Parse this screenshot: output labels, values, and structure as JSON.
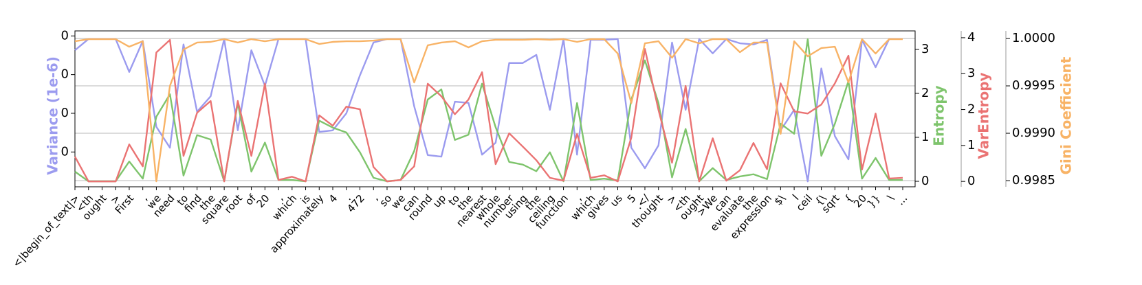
{
  "chart_data": {
    "type": "line",
    "categories": [
      "<|begin_of_text|>",
      "<th",
      "ought",
      ">",
      "First",
      ",",
      "we",
      "need",
      "to",
      "find",
      "the",
      "square",
      "root",
      "of",
      "20",
      ",",
      "which",
      "is",
      "approximately",
      "4",
      ".",
      "472",
      ",",
      "so",
      "we",
      "can",
      "round",
      "up",
      "to",
      "the",
      "nearest",
      "whole",
      "number",
      "using",
      "the",
      "ceiling",
      "function",
      ",",
      "which",
      "gives",
      "us",
      "5",
      ".</",
      "thought",
      ">",
      "<th",
      "ought",
      ">We",
      "can",
      "evaluate",
      "the",
      "expression",
      "$\\",
      "l",
      "ceil",
      "{\\",
      "sqrt",
      "{",
      "20",
      "}}",
      "\\",
      "..."
    ],
    "series": [
      {
        "name": "Variance (1e-6)",
        "color": "#9b9bef",
        "axis": "y",
        "values": [
          3.63,
          3.92,
          3.92,
          3.92,
          3.07,
          3.87,
          1.65,
          1.11,
          3.78,
          2.04,
          2.44,
          3.92,
          1.56,
          3.63,
          2.71,
          3.92,
          3.92,
          3.92,
          1.52,
          1.56,
          2.0,
          2.98,
          3.83,
          3.92,
          3.92,
          2.18,
          0.92,
          0.88,
          2.3,
          2.27,
          0.93,
          1.24,
          3.3,
          3.3,
          3.51,
          2.09,
          3.92,
          0.93,
          3.9,
          3.9,
          3.92,
          1.11,
          0.58,
          1.17,
          3.83,
          2.09,
          3.92,
          3.55,
          3.92,
          3.81,
          3.78,
          3.9,
          1.56,
          2.09,
          0.24,
          3.16,
          1.41,
          0.81,
          3.9,
          3.19,
          3.92,
          3.92
        ]
      },
      {
        "name": "Entropy",
        "color": "#7ec46c",
        "axis": "y2",
        "values": [
          0.22,
          0,
          0,
          0,
          0.45,
          0.06,
          1.47,
          1.98,
          0.13,
          1.05,
          0.95,
          0,
          1.78,
          0.22,
          0.88,
          0.03,
          0.03,
          0,
          1.38,
          1.22,
          1.11,
          0.66,
          0.08,
          0,
          0.03,
          0.69,
          1.86,
          2.09,
          0.94,
          1.06,
          2.22,
          1.23,
          0.44,
          0.38,
          0.23,
          0.66,
          0,
          1.78,
          0.03,
          0.06,
          0.02,
          1.86,
          2.75,
          1.78,
          0.09,
          1.19,
          0,
          0.3,
          0.03,
          0.11,
          0.16,
          0.05,
          1.31,
          1.08,
          3.23,
          0.58,
          1.31,
          2.28,
          0.06,
          0.53,
          0.03,
          0.03
        ]
      },
      {
        "name": "VarEntropy",
        "color": "#ea7373",
        "axis": "y3",
        "values": [
          0.69,
          0,
          0,
          0,
          1.03,
          0.42,
          3.59,
          3.94,
          0.71,
          1.91,
          2.24,
          0,
          2.24,
          0.71,
          2.72,
          0.04,
          0.13,
          0,
          1.84,
          1.55,
          2.08,
          2.01,
          0.4,
          0,
          0.04,
          0.42,
          2.72,
          2.37,
          1.87,
          2.28,
          3.04,
          0.48,
          1.34,
          0.97,
          0.59,
          0.1,
          0.02,
          1.32,
          0.1,
          0.17,
          0,
          1.22,
          3.69,
          1.99,
          0.52,
          2.66,
          0,
          1.2,
          0.02,
          0.31,
          1.07,
          0.34,
          2.73,
          1.95,
          1.89,
          2.14,
          2.73,
          3.5,
          0.33,
          1.89,
          0.08,
          0.1
        ]
      },
      {
        "name": "Gini Coefficient",
        "color": "#f8b366",
        "axis": "y4",
        "values": [
          0.999971,
          0.999993,
          0.999993,
          0.999993,
          0.999913,
          0.999971,
          0.998493,
          0.9995,
          0.999884,
          0.999957,
          0.999964,
          0.999993,
          0.999957,
          0.999993,
          0.999971,
          0.999993,
          0.999993,
          0.999993,
          0.999942,
          0.999964,
          0.999971,
          0.999971,
          0.999978,
          0.999993,
          0.999993,
          0.999536,
          0.999928,
          0.999957,
          0.999971,
          0.999906,
          0.999971,
          0.999986,
          0.999986,
          0.999986,
          0.999993,
          0.999986,
          0.999993,
          0.999964,
          0.999993,
          0.999993,
          0.999841,
          0.999319,
          0.999949,
          0.999971,
          0.999797,
          0.999993,
          0.999949,
          0.999993,
          0.999993,
          0.999855,
          0.999957,
          0.999957,
          0.998993,
          0.999971,
          0.999812,
          0.999899,
          0.999913,
          0.999536,
          0.999993,
          0.999841,
          0.999993,
          0.999993
        ]
      }
    ],
    "ylim": [
      0.1,
      4.13
    ],
    "yticks": [
      {
        "value": 4,
        "label": "0"
      },
      {
        "value": 3,
        "label": "0"
      },
      {
        "value": 2,
        "label": "0"
      },
      {
        "value": 1,
        "label": "0"
      }
    ],
    "y2lim": [
      -0.125,
      3.42
    ],
    "y2ticks": [
      0,
      1,
      2,
      3
    ],
    "y3lim": [
      -0.15,
      4.19
    ],
    "y3ticks": [
      0,
      1,
      2,
      3,
      4
    ],
    "y4lim": [
      0.998435,
      1.00008
    ],
    "y4ticks": [
      0.9985,
      {
        "value": 0.999,
        "label": "0.9990"
      },
      0.9995,
      {
        "value": 1,
        "label": "1.0000"
      }
    ],
    "grid": "y4"
  }
}
